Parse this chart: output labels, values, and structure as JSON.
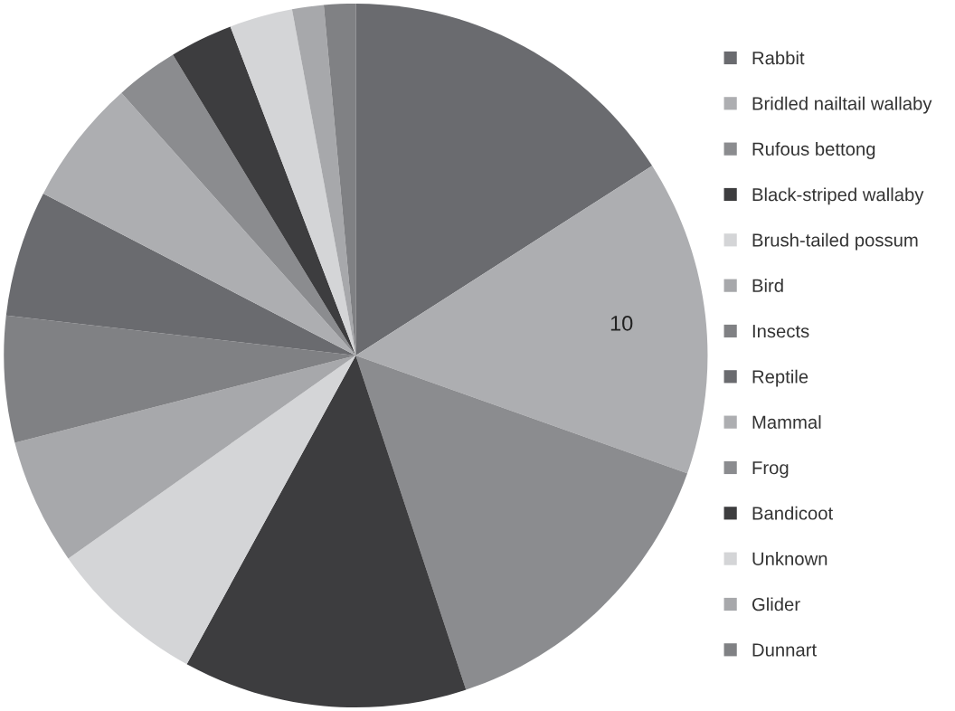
{
  "chart_data": {
    "type": "pie",
    "categories": [
      "Rabbit",
      "Bridled nailtail wallaby",
      "Rufous bettong",
      "Black-striped wallaby",
      "Brush-tailed possum",
      "Bird",
      "Insects",
      "Reptile",
      "Mammal",
      "Frog",
      "Bandicoot",
      "Unknown",
      "Glider",
      "Dunnart"
    ],
    "values": [
      11,
      10,
      10,
      9,
      5,
      4,
      4,
      4,
      4,
      2,
      2,
      2,
      1,
      1
    ],
    "value_labels": [
      null,
      "10",
      null,
      null,
      null,
      null,
      null,
      null,
      null,
      null,
      null,
      null,
      null,
      null
    ],
    "colors": [
      "#6a6b6f",
      "#adaeb1",
      "#8b8c8f",
      "#3d3d3f",
      "#d4d5d7",
      "#a7a8ab",
      "#808184",
      "#6a6b6f",
      "#adaeb1",
      "#8b8c8f",
      "#3d3d3f",
      "#d4d5d7",
      "#a7a8ab",
      "#808184"
    ],
    "legend": "right"
  }
}
